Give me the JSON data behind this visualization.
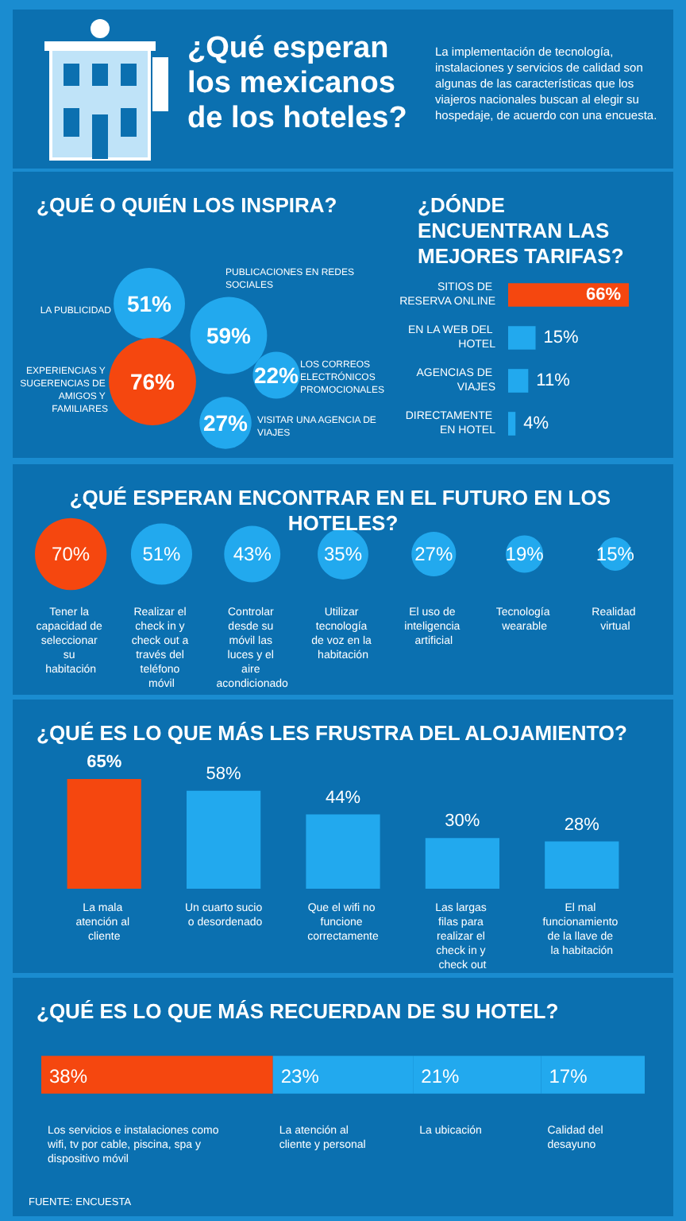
{
  "chart_data": [
    {
      "type": "other",
      "title": "¿Qué esperan los mexicanos de los hoteles?",
      "subtitle": "La implementación de tecnología, instalaciones y servicios de calidad son algunas de las características que los viajeros nacionales buscan al elegir su hospedaje, de acuerdo con una encuesta."
    },
    {
      "type": "other",
      "title": "¿QUÉ O QUIÉN LOS INSPIRA?",
      "categories": [
        "LA PUBLICIDAD",
        "PUBLICACIONES EN REDES SOCIALES",
        "EXPERIENCIAS Y SUGERENCIAS DE AMIGOS Y FAMILIARES",
        "LOS CORREOS ELECTRÓNICOS PROMOCIONALES",
        "VISITAR UNA AGENCIA DE VIAJES"
      ],
      "series": [
        {
          "color": "#22a9ee",
          "values": [
            51,
            59,
            null,
            22,
            27
          ],
          "value_labels": [
            "51%",
            "59%",
            null,
            "22%",
            "27%"
          ]
        },
        {
          "color": "#f5470f",
          "values": [
            null,
            null,
            76,
            null,
            null
          ],
          "value_labels": [
            null,
            null,
            "76%",
            null,
            null
          ]
        }
      ]
    },
    {
      "type": "bar",
      "orientation": "horizontal",
      "title": "¿DÓNDE ENCUENTRAN LAS MEJORES TARIFAS?",
      "categories": [
        "SITIOS DE RESERVA ONLINE",
        "EN LA WEB DEL HOTEL",
        "AGENCIAS DE VIAJES",
        "DIRECTAMENTE EN HOTEL"
      ],
      "values": [
        66,
        15,
        11,
        4
      ],
      "value_labels": [
        "66%",
        "15%",
        "11%",
        "4%"
      ],
      "colors": [
        "#f5470f",
        "#22a9ee",
        "#22a9ee",
        "#22a9ee"
      ]
    },
    {
      "type": "other",
      "title": "¿QUÉ ESPERAN ENCONTRAR EN EL FUTURO EN LOS HOTELES?",
      "categories": [
        "Tener la capacidad de seleccionar su habitación",
        "Realizar el check in y check out a través del teléfono móvil",
        "Controlar desde su móvil las luces y el aire acondicionado",
        "Utilizar tecnología de voz en la habitación",
        "El uso de inteligencia artificial",
        "Tecnología wearable",
        "Realidad virtual"
      ],
      "series": [
        {
          "color": "#f5470f",
          "values": [
            70,
            null,
            null,
            null,
            null,
            null,
            null
          ],
          "value_labels": [
            "70%",
            null,
            null,
            null,
            null,
            null,
            null
          ]
        },
        {
          "color": "#22a9ee",
          "values": [
            null,
            51,
            43,
            35,
            27,
            19,
            15
          ],
          "value_labels": [
            null,
            "51%",
            "43%",
            "35%",
            "27%",
            "19%",
            "15%"
          ]
        }
      ]
    },
    {
      "type": "bar",
      "title": "¿QUÉ ES LO QUE MÁS LES FRUSTRA DEL ALOJAMIENTO?",
      "categories": [
        "La mala atención al cliente",
        "Un cuarto sucio o desordenado",
        "Que el wifi no funcione correctamente",
        "Las largas filas para realizar el check in y check out",
        "El mal funcionamiento de la llave de la habitación"
      ],
      "values": [
        65,
        58,
        44,
        30,
        28
      ],
      "value_labels": [
        "65%",
        "58%",
        "44%",
        "30%",
        "28%"
      ],
      "colors": [
        "#f5470f",
        "#22a9ee",
        "#22a9ee",
        "#22a9ee",
        "#22a9ee"
      ]
    },
    {
      "type": "bar",
      "orientation": "horizontal",
      "stacked": true,
      "title": "¿QUÉ ES LO QUE MÁS RECUERDAN DE SU HOTEL?",
      "categories": [
        null
      ],
      "series": [
        {
          "name": "Los servicios e instalaciones como wifi, tv por cable, piscina, spa y dispositivo móvil",
          "color": "#f5470f",
          "values": [
            38
          ],
          "value_labels": [
            "38%"
          ]
        },
        {
          "name": "La atención al cliente y personal",
          "color": "#22a9ee",
          "values": [
            23
          ],
          "value_labels": [
            "23%"
          ]
        },
        {
          "name": "La ubicación",
          "color": "#22a9ee",
          "values": [
            21
          ],
          "value_labels": [
            "21%"
          ]
        },
        {
          "name": "Calidad del desayuno",
          "color": "#22a9ee",
          "values": [
            17
          ],
          "value_labels": [
            "17%"
          ]
        }
      ],
      "annotations": [
        "FUENTE: ENCUESTA"
      ]
    }
  ]
}
